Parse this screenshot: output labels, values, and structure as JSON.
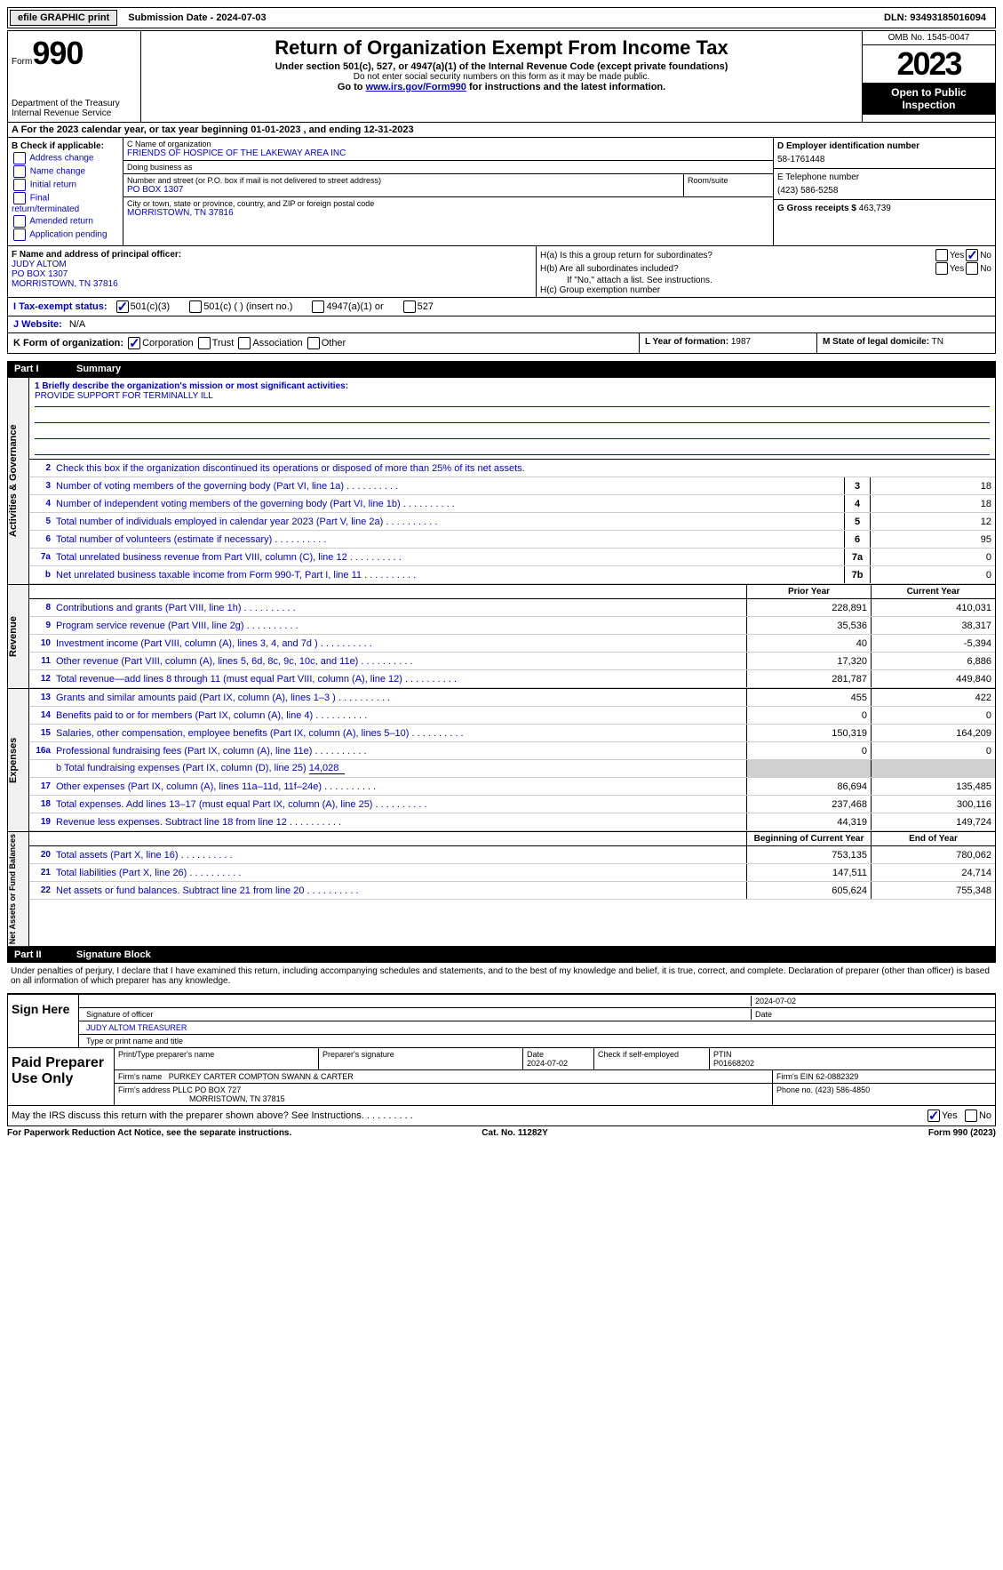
{
  "topbar": {
    "efile": "efile GRAPHIC print",
    "submission": "Submission Date - 2024-07-03",
    "dln": "DLN: 93493185016094"
  },
  "header": {
    "form_label": "Form",
    "form_no": "990",
    "dept": "Department of the Treasury Internal Revenue Service",
    "title": "Return of Organization Exempt From Income Tax",
    "subtitle": "Under section 501(c), 527, or 4947(a)(1) of the Internal Revenue Code (except private foundations)",
    "warn": "Do not enter social security numbers on this form as it may be made public.",
    "goto_pre": "Go to ",
    "goto_link": "www.irs.gov/Form990",
    "goto_post": " for instructions and the latest information.",
    "omb": "OMB No. 1545-0047",
    "year": "2023",
    "open": "Open to Public Inspection"
  },
  "row_a": "A  For the 2023 calendar year, or tax year beginning 01-01-2023   , and ending 12-31-2023",
  "col_b": {
    "title": "B Check if applicable:",
    "items": [
      "Address change",
      "Name change",
      "Initial return",
      "Final return/terminated",
      "Amended return",
      "Application pending"
    ]
  },
  "col_c": {
    "name_lbl": "C Name of organization",
    "name": "FRIENDS OF HOSPICE OF THE LAKEWAY AREA INC",
    "dba_lbl": "Doing business as",
    "dba": "",
    "street_lbl": "Number and street (or P.O. box if mail is not delivered to street address)",
    "street": "PO BOX 1307",
    "room_lbl": "Room/suite",
    "city_lbl": "City or town, state or province, country, and ZIP or foreign postal code",
    "city": "MORRISTOWN, TN  37816"
  },
  "col_d": {
    "ein_lbl": "D Employer identification number",
    "ein": "58-1761448",
    "phone_lbl": "E Telephone number",
    "phone": "(423) 586-5258",
    "gross_lbl": "G Gross receipts $",
    "gross": "463,739"
  },
  "officer": {
    "label": "F  Name and address of principal officer:",
    "name": "JUDY ALTOM",
    "addr1": "PO BOX 1307",
    "addr2": "MORRISTOWN, TN  37816"
  },
  "h": {
    "a": "H(a)  Is this a group return for subordinates?",
    "b": "H(b)  Are all subordinates included?",
    "b_note": "If \"No,\" attach a list. See instructions.",
    "c": "H(c)  Group exemption number",
    "yes": "Yes",
    "no": "No"
  },
  "tax_status": {
    "lbl": "I   Tax-exempt status:",
    "opts": [
      "501(c)(3)",
      "501(c) (  ) (insert no.)",
      "4947(a)(1) or",
      "527"
    ]
  },
  "website": {
    "lbl": "J   Website:",
    "val": "N/A"
  },
  "k": {
    "lbl": "K Form of organization:",
    "opts": [
      "Corporation",
      "Trust",
      "Association",
      "Other"
    ]
  },
  "l": {
    "lbl": "L Year of formation:",
    "val": "1987"
  },
  "m": {
    "lbl": "M State of legal domicile:",
    "val": "TN"
  },
  "part1": {
    "num": "Part I",
    "title": "Summary"
  },
  "mission": {
    "q": "1  Briefly describe the organization's mission or most significant activities:",
    "a": "PROVIDE SUPPORT FOR TERMINALLY ILL"
  },
  "gov": {
    "tab": "Activities & Governance",
    "l2": "Check this box      if the organization discontinued its operations or disposed of more than 25% of its net assets.",
    "lines": [
      {
        "n": "3",
        "d": "Number of voting members of the governing body (Part VI, line 1a)",
        "box": "3",
        "v": "18"
      },
      {
        "n": "4",
        "d": "Number of independent voting members of the governing body (Part VI, line 1b)",
        "box": "4",
        "v": "18"
      },
      {
        "n": "5",
        "d": "Total number of individuals employed in calendar year 2023 (Part V, line 2a)",
        "box": "5",
        "v": "12"
      },
      {
        "n": "6",
        "d": "Total number of volunteers (estimate if necessary)",
        "box": "6",
        "v": "95"
      },
      {
        "n": "7a",
        "d": "Total unrelated business revenue from Part VIII, column (C), line 12",
        "box": "7a",
        "v": "0"
      },
      {
        "n": "b",
        "d": "Net unrelated business taxable income from Form 990-T, Part I, line 11",
        "box": "7b",
        "v": "0"
      }
    ]
  },
  "rev": {
    "tab": "Revenue",
    "hdr_prior": "Prior Year",
    "hdr_curr": "Current Year",
    "lines": [
      {
        "n": "8",
        "d": "Contributions and grants (Part VIII, line 1h)",
        "p": "228,891",
        "c": "410,031"
      },
      {
        "n": "9",
        "d": "Program service revenue (Part VIII, line 2g)",
        "p": "35,536",
        "c": "38,317"
      },
      {
        "n": "10",
        "d": "Investment income (Part VIII, column (A), lines 3, 4, and 7d )",
        "p": "40",
        "c": "-5,394"
      },
      {
        "n": "11",
        "d": "Other revenue (Part VIII, column (A), lines 5, 6d, 8c, 9c, 10c, and 11e)",
        "p": "17,320",
        "c": "6,886"
      },
      {
        "n": "12",
        "d": "Total revenue—add lines 8 through 11 (must equal Part VIII, column (A), line 12)",
        "p": "281,787",
        "c": "449,840"
      }
    ]
  },
  "exp": {
    "tab": "Expenses",
    "lines": [
      {
        "n": "13",
        "d": "Grants and similar amounts paid (Part IX, column (A), lines 1–3 )",
        "p": "455",
        "c": "422"
      },
      {
        "n": "14",
        "d": "Benefits paid to or for members (Part IX, column (A), line 4)",
        "p": "0",
        "c": "0"
      },
      {
        "n": "15",
        "d": "Salaries, other compensation, employee benefits (Part IX, column (A), lines 5–10)",
        "p": "150,319",
        "c": "164,209"
      },
      {
        "n": "16a",
        "d": "Professional fundraising fees (Part IX, column (A), line 11e)",
        "p": "0",
        "c": "0"
      }
    ],
    "l16b": "b  Total fundraising expenses (Part IX, column (D), line 25)",
    "l16b_v": "14,028",
    "lines2": [
      {
        "n": "17",
        "d": "Other expenses (Part IX, column (A), lines 11a–11d, 11f–24e)",
        "p": "86,694",
        "c": "135,485"
      },
      {
        "n": "18",
        "d": "Total expenses. Add lines 13–17 (must equal Part IX, column (A), line 25)",
        "p": "237,468",
        "c": "300,116"
      },
      {
        "n": "19",
        "d": "Revenue less expenses. Subtract line 18 from line 12",
        "p": "44,319",
        "c": "149,724"
      }
    ]
  },
  "net": {
    "tab": "Net Assets or Fund Balances",
    "hdr_begin": "Beginning of Current Year",
    "hdr_end": "End of Year",
    "lines": [
      {
        "n": "20",
        "d": "Total assets (Part X, line 16)",
        "p": "753,135",
        "c": "780,062"
      },
      {
        "n": "21",
        "d": "Total liabilities (Part X, line 26)",
        "p": "147,511",
        "c": "24,714"
      },
      {
        "n": "22",
        "d": "Net assets or fund balances. Subtract line 21 from line 20",
        "p": "605,624",
        "c": "755,348"
      }
    ]
  },
  "part2": {
    "num": "Part II",
    "title": "Signature Block"
  },
  "sig": {
    "decl": "Under penalties of perjury, I declare that I have examined this return, including accompanying schedules and statements, and to the best of my knowledge and belief, it is true, correct, and complete. Declaration of preparer (other than officer) is based on all information of which preparer has any knowledge.",
    "sign_here": "Sign Here",
    "sig_lbl": "Signature of officer",
    "date_lbl": "Date",
    "date": "2024-07-02",
    "name_lbl": "Type or print name and title",
    "name": "JUDY ALTOM  TREASURER",
    "paid": "Paid Preparer Use Only",
    "prep_name_lbl": "Print/Type preparer's name",
    "prep_sig_lbl": "Preparer's signature",
    "prep_date_lbl": "Date",
    "prep_date": "2024-07-02",
    "self_emp": "Check       if self-employed",
    "ptin_lbl": "PTIN",
    "ptin": "P01668202",
    "firm_name_lbl": "Firm's name",
    "firm_name": "PURKEY CARTER COMPTON SWANN & CARTER",
    "firm_ein_lbl": "Firm's EIN",
    "firm_ein": "62-0882329",
    "firm_addr_lbl": "Firm's address",
    "firm_addr": "PLLC PO BOX 727",
    "firm_city": "MORRISTOWN, TN  37815",
    "firm_phone_lbl": "Phone no.",
    "firm_phone": "(423) 586-4850"
  },
  "discuss": {
    "q": "May the IRS discuss this return with the preparer shown above? See Instructions.",
    "yes": "Yes",
    "no": "No"
  },
  "footer": {
    "left": "For Paperwork Reduction Act Notice, see the separate instructions.",
    "center": "Cat. No. 11282Y",
    "right_pre": "Form ",
    "right_b": "990",
    "right_post": " (2023)"
  }
}
